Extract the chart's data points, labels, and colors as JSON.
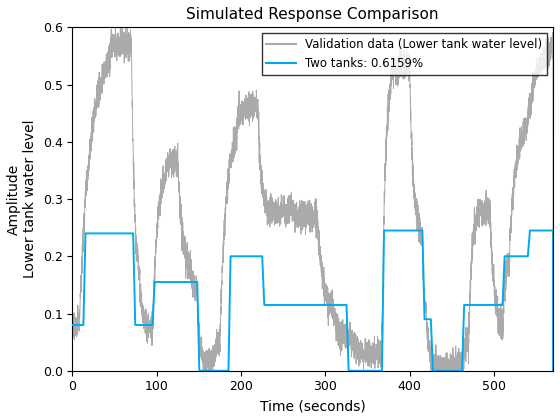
{
  "title": "Simulated Response Comparison",
  "xlabel": "Time (seconds)",
  "ylabel": "Amplitude\nLower tank water level",
  "xlim": [
    0,
    570
  ],
  "ylim": [
    0,
    0.6
  ],
  "xticks": [
    0,
    100,
    200,
    300,
    400,
    500
  ],
  "yticks": [
    0,
    0.1,
    0.2,
    0.3,
    0.4,
    0.5,
    0.6
  ],
  "legend_labels": [
    "Validation data (Lower tank water level)",
    "Two tanks: 0.6159%"
  ],
  "gray_color": "#aaaaaa",
  "blue_color": "#00aaee",
  "title_fontsize": 11,
  "label_fontsize": 10,
  "tick_fontsize": 9,
  "blue_steps": [
    [
      0,
      0.08
    ],
    [
      13,
      0.24
    ],
    [
      72,
      0.08
    ],
    [
      95,
      0.155
    ],
    [
      148,
      0.0
    ],
    [
      185,
      0.2
    ],
    [
      225,
      0.115
    ],
    [
      325,
      0.0
    ],
    [
      367,
      0.245
    ],
    [
      415,
      0.09
    ],
    [
      425,
      0.0
    ],
    [
      462,
      0.115
    ],
    [
      510,
      0.2
    ],
    [
      540,
      0.245
    ]
  ],
  "gray_waypoints": [
    [
      0,
      0.08
    ],
    [
      8,
      0.08
    ],
    [
      45,
      0.57
    ],
    [
      70,
      0.57
    ],
    [
      80,
      0.14
    ],
    [
      95,
      0.065
    ],
    [
      110,
      0.35
    ],
    [
      125,
      0.37
    ],
    [
      140,
      0.17
    ],
    [
      148,
      0.14
    ],
    [
      155,
      0.02
    ],
    [
      168,
      0.02
    ],
    [
      175,
      0.05
    ],
    [
      195,
      0.43
    ],
    [
      210,
      0.46
    ],
    [
      220,
      0.46
    ],
    [
      230,
      0.28
    ],
    [
      260,
      0.28
    ],
    [
      275,
      0.27
    ],
    [
      290,
      0.27
    ],
    [
      310,
      0.095
    ],
    [
      330,
      0.055
    ],
    [
      350,
      0.03
    ],
    [
      360,
      0.03
    ],
    [
      367,
      0.03
    ],
    [
      378,
      0.53
    ],
    [
      400,
      0.53
    ],
    [
      410,
      0.25
    ],
    [
      415,
      0.235
    ],
    [
      420,
      0.09
    ],
    [
      428,
      0.01
    ],
    [
      435,
      0.008
    ],
    [
      462,
      0.008
    ],
    [
      470,
      0.055
    ],
    [
      480,
      0.28
    ],
    [
      495,
      0.28
    ],
    [
      510,
      0.065
    ],
    [
      518,
      0.2
    ],
    [
      540,
      0.44
    ],
    [
      570,
      0.57
    ]
  ]
}
